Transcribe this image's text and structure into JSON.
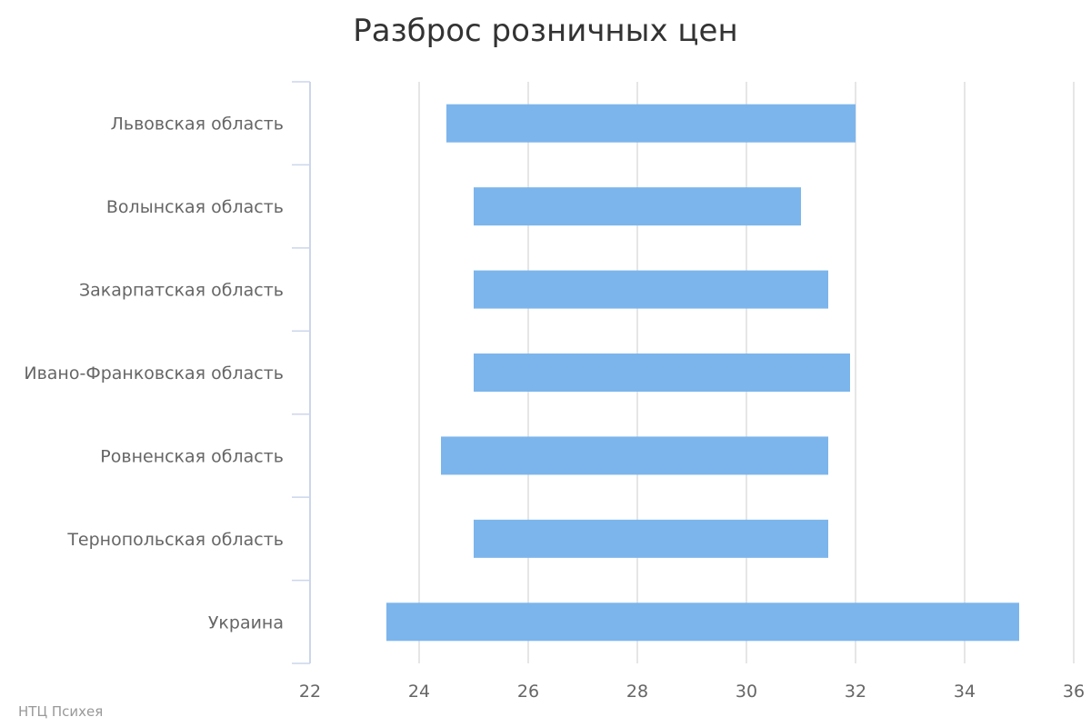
{
  "chart_data": {
    "type": "columnrange",
    "orientation": "horizontal",
    "title": "Разброс розничных цен",
    "credit": "НТЦ Психея",
    "categories": [
      "Львовская область",
      "Волынская область",
      "Закарпатская область",
      "Ивано-Франковская область",
      "Ровненская область",
      "Тернопольская область",
      "Украина"
    ],
    "ranges": [
      [
        24.5,
        32
      ],
      [
        25,
        31
      ],
      [
        25,
        31.5
      ],
      [
        25,
        31.9
      ],
      [
        24.4,
        31.5
      ],
      [
        25,
        31.5
      ],
      [
        23.4,
        35
      ]
    ],
    "xlim": [
      22,
      36
    ],
    "ticks": [
      22,
      24,
      26,
      28,
      30,
      32,
      34,
      36
    ],
    "grid": true,
    "legend": "none",
    "bar_color": "#7cb5ec"
  }
}
